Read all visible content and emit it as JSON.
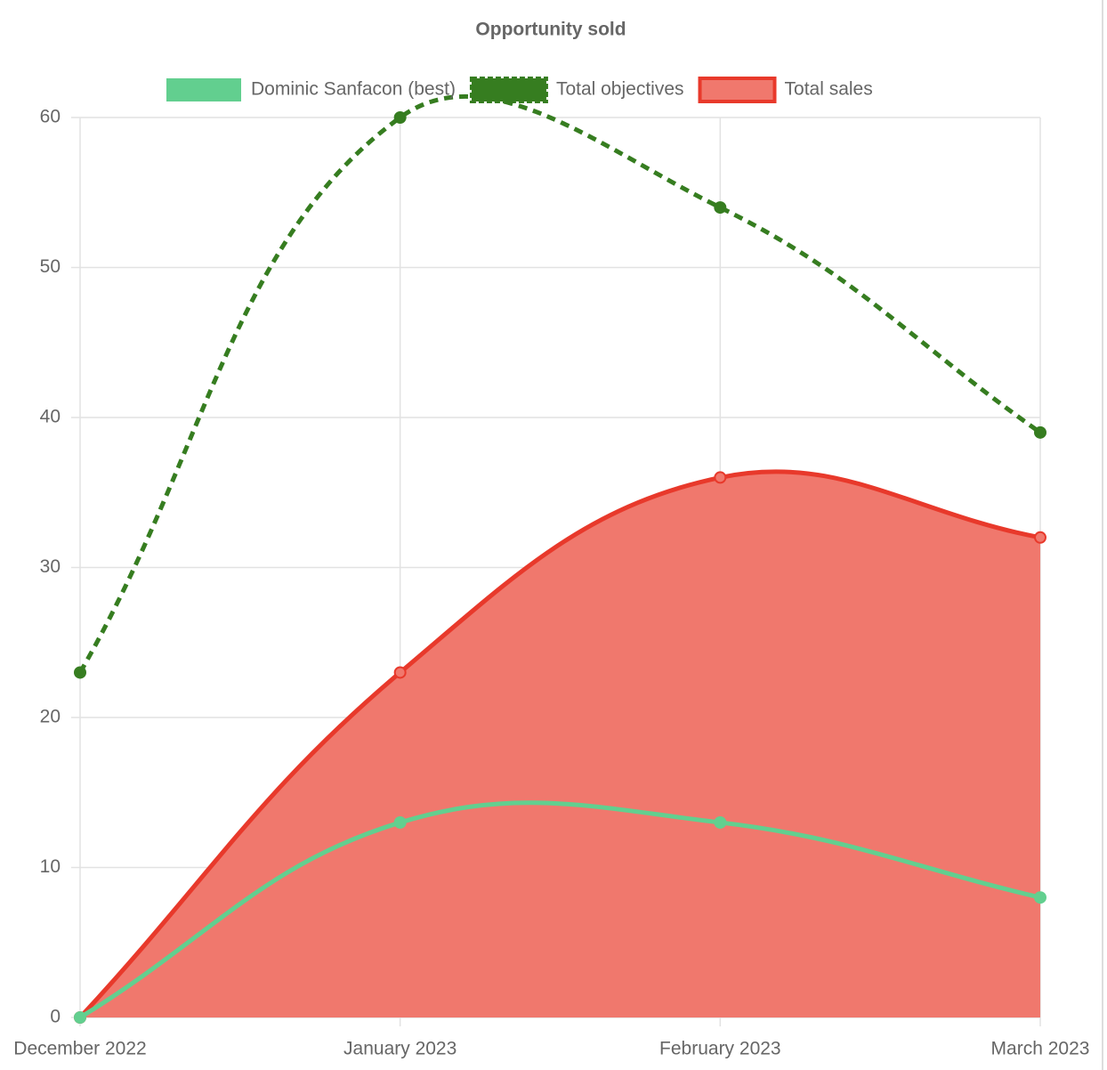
{
  "chart_data": {
    "type": "line",
    "title": "Opportunity sold",
    "categories": [
      "December 2022",
      "January 2023",
      "February 2023",
      "March 2023"
    ],
    "series": [
      {
        "name": "Dominic Sanfacon (best)",
        "color": "#62cf8f",
        "values": [
          0,
          13,
          13,
          8
        ]
      },
      {
        "name": "Total objectives",
        "color": "#367d20",
        "dashed": true,
        "values": [
          23,
          60,
          54,
          39
        ]
      },
      {
        "name": "Total sales",
        "color": "#e8392b",
        "fill": "#f0786d",
        "values": [
          0,
          23,
          36,
          32
        ]
      }
    ],
    "ylim": [
      0,
      60
    ],
    "yticks": [
      0,
      10,
      20,
      30,
      40,
      50,
      60
    ],
    "grid": true
  }
}
